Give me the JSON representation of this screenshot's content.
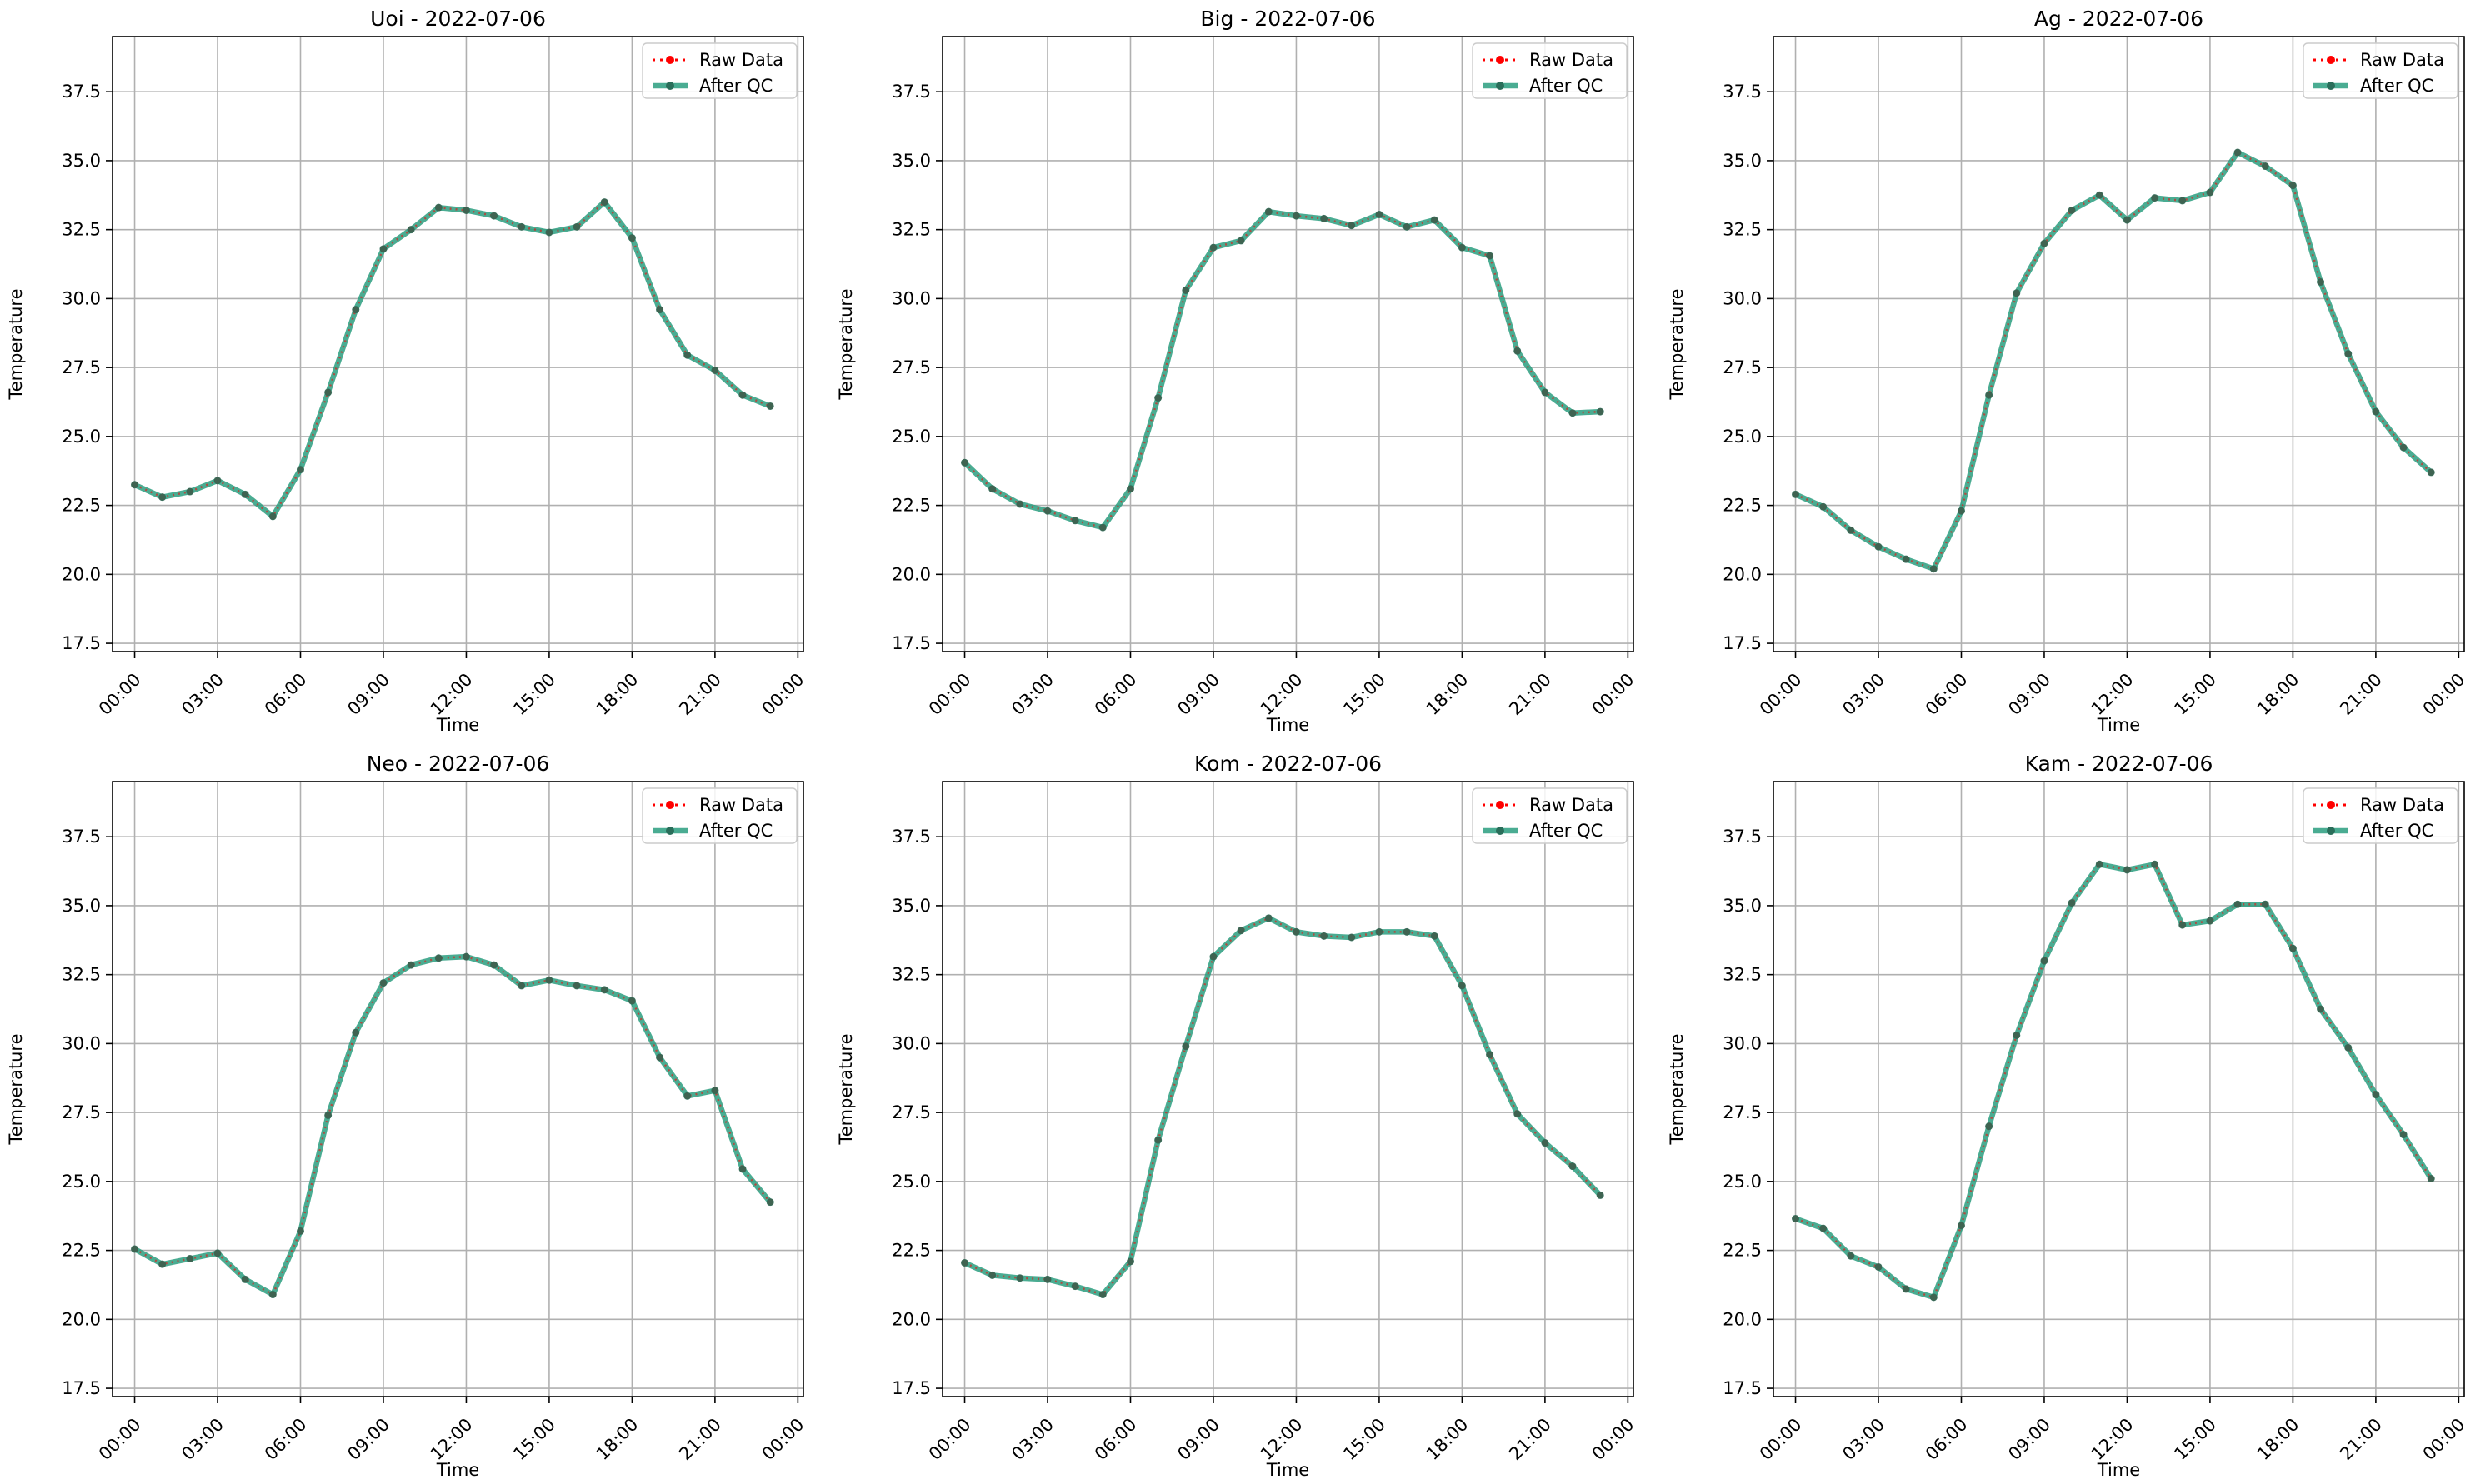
{
  "colors": {
    "raw": "#ff0000",
    "qc": "#2a9d7f",
    "qc_dot": "#2a6e5a",
    "grid": "#b0b0b0",
    "axis": "#000000"
  },
  "chart_data": [
    {
      "type": "line",
      "title": "Uoi - 2022-07-06",
      "xlabel": "Time",
      "ylabel": "Temperature",
      "x": [
        "00:00",
        "01:00",
        "02:00",
        "03:00",
        "04:00",
        "05:00",
        "06:00",
        "07:00",
        "08:00",
        "09:00",
        "10:00",
        "11:00",
        "12:00",
        "13:00",
        "14:00",
        "15:00",
        "16:00",
        "17:00",
        "18:00",
        "19:00",
        "20:00",
        "21:00",
        "22:00",
        "23:00"
      ],
      "xticks": [
        "00:00",
        "03:00",
        "06:00",
        "09:00",
        "12:00",
        "15:00",
        "18:00",
        "21:00",
        "00:00"
      ],
      "ylim": [
        17.2,
        39.5
      ],
      "yticks": [
        "17.5",
        "20.0",
        "22.5",
        "25.0",
        "27.5",
        "30.0",
        "32.5",
        "35.0",
        "37.5"
      ],
      "grid": true,
      "legend_position": "top-right",
      "series": [
        {
          "name": "Raw Data",
          "values": [
            23.25,
            22.8,
            23.0,
            23.4,
            22.9,
            22.1,
            23.8,
            26.6,
            29.6,
            31.8,
            32.5,
            33.3,
            33.2,
            33.0,
            32.6,
            32.4,
            32.6,
            33.5,
            32.2,
            29.6,
            27.95,
            27.4,
            26.5,
            26.1
          ]
        },
        {
          "name": "After QC",
          "values": [
            23.25,
            22.8,
            23.0,
            23.4,
            22.9,
            22.1,
            23.8,
            26.6,
            29.6,
            31.8,
            32.5,
            33.3,
            33.2,
            33.0,
            32.6,
            32.4,
            32.6,
            33.5,
            32.2,
            29.6,
            27.95,
            27.4,
            26.5,
            26.1
          ]
        }
      ]
    },
    {
      "type": "line",
      "title": "Big - 2022-07-06",
      "xlabel": "Time",
      "ylabel": "Temperature",
      "x": [
        "00:00",
        "01:00",
        "02:00",
        "03:00",
        "04:00",
        "05:00",
        "06:00",
        "07:00",
        "08:00",
        "09:00",
        "10:00",
        "11:00",
        "12:00",
        "13:00",
        "14:00",
        "15:00",
        "16:00",
        "17:00",
        "18:00",
        "19:00",
        "20:00",
        "21:00",
        "22:00",
        "23:00"
      ],
      "xticks": [
        "00:00",
        "03:00",
        "06:00",
        "09:00",
        "12:00",
        "15:00",
        "18:00",
        "21:00",
        "00:00"
      ],
      "ylim": [
        17.2,
        39.5
      ],
      "yticks": [
        "17.5",
        "20.0",
        "22.5",
        "25.0",
        "27.5",
        "30.0",
        "32.5",
        "35.0",
        "37.5"
      ],
      "grid": true,
      "legend_position": "top-right",
      "series": [
        {
          "name": "Raw Data",
          "values": [
            24.05,
            23.1,
            22.55,
            22.3,
            21.95,
            21.7,
            23.1,
            26.4,
            30.3,
            31.85,
            32.1,
            33.15,
            33.0,
            32.9,
            32.65,
            33.05,
            32.6,
            32.85,
            31.85,
            31.55,
            28.1,
            26.6,
            25.85,
            25.9
          ]
        },
        {
          "name": "After QC",
          "values": [
            24.05,
            23.1,
            22.55,
            22.3,
            21.95,
            21.7,
            23.1,
            26.4,
            30.3,
            31.85,
            32.1,
            33.15,
            33.0,
            32.9,
            32.65,
            33.05,
            32.6,
            32.85,
            31.85,
            31.55,
            28.1,
            26.6,
            25.85,
            25.9
          ]
        }
      ]
    },
    {
      "type": "line",
      "title": "Ag - 2022-07-06",
      "xlabel": "Time",
      "ylabel": "Temperature",
      "x": [
        "00:00",
        "01:00",
        "02:00",
        "03:00",
        "04:00",
        "05:00",
        "06:00",
        "07:00",
        "08:00",
        "09:00",
        "10:00",
        "11:00",
        "12:00",
        "13:00",
        "14:00",
        "15:00",
        "16:00",
        "17:00",
        "18:00",
        "19:00",
        "20:00",
        "21:00",
        "22:00",
        "23:00"
      ],
      "xticks": [
        "00:00",
        "03:00",
        "06:00",
        "09:00",
        "12:00",
        "15:00",
        "18:00",
        "21:00",
        "00:00"
      ],
      "ylim": [
        17.2,
        39.5
      ],
      "yticks": [
        "17.5",
        "20.0",
        "22.5",
        "25.0",
        "27.5",
        "30.0",
        "32.5",
        "35.0",
        "37.5"
      ],
      "grid": true,
      "legend_position": "top-right",
      "series": [
        {
          "name": "Raw Data",
          "values": [
            22.9,
            22.45,
            21.6,
            21.0,
            20.55,
            20.2,
            22.3,
            26.5,
            30.2,
            32.0,
            33.2,
            33.75,
            32.85,
            33.65,
            33.55,
            33.85,
            35.3,
            34.8,
            34.1,
            30.6,
            28.0,
            25.9,
            24.6,
            23.7
          ]
        },
        {
          "name": "After QC",
          "values": [
            22.9,
            22.45,
            21.6,
            21.0,
            20.55,
            20.2,
            22.3,
            26.5,
            30.2,
            32.0,
            33.2,
            33.75,
            32.85,
            33.65,
            33.55,
            33.85,
            35.3,
            34.8,
            34.1,
            30.6,
            28.0,
            25.9,
            24.6,
            23.7
          ]
        }
      ]
    },
    {
      "type": "line",
      "title": "Neo - 2022-07-06",
      "xlabel": "Time",
      "ylabel": "Temperature",
      "x": [
        "00:00",
        "01:00",
        "02:00",
        "03:00",
        "04:00",
        "05:00",
        "06:00",
        "07:00",
        "08:00",
        "09:00",
        "10:00",
        "11:00",
        "12:00",
        "13:00",
        "14:00",
        "15:00",
        "16:00",
        "17:00",
        "18:00",
        "19:00",
        "20:00",
        "21:00",
        "22:00",
        "23:00"
      ],
      "xticks": [
        "00:00",
        "03:00",
        "06:00",
        "09:00",
        "12:00",
        "15:00",
        "18:00",
        "21:00",
        "00:00"
      ],
      "ylim": [
        17.2,
        39.5
      ],
      "yticks": [
        "17.5",
        "20.0",
        "22.5",
        "25.0",
        "27.5",
        "30.0",
        "32.5",
        "35.0",
        "37.5"
      ],
      "grid": true,
      "legend_position": "top-right",
      "series": [
        {
          "name": "Raw Data",
          "values": [
            22.55,
            22.0,
            22.2,
            22.4,
            21.45,
            20.9,
            23.2,
            27.4,
            30.4,
            32.2,
            32.85,
            33.1,
            33.15,
            32.85,
            32.1,
            32.3,
            32.1,
            31.95,
            31.55,
            29.5,
            28.1,
            28.3,
            25.45,
            24.25
          ]
        },
        {
          "name": "After QC",
          "values": [
            22.55,
            22.0,
            22.2,
            22.4,
            21.45,
            20.9,
            23.2,
            27.4,
            30.4,
            32.2,
            32.85,
            33.1,
            33.15,
            32.85,
            32.1,
            32.3,
            32.1,
            31.95,
            31.55,
            29.5,
            28.1,
            28.3,
            25.45,
            24.25
          ]
        }
      ]
    },
    {
      "type": "line",
      "title": "Kom - 2022-07-06",
      "xlabel": "Time",
      "ylabel": "Temperature",
      "x": [
        "00:00",
        "01:00",
        "02:00",
        "03:00",
        "04:00",
        "05:00",
        "06:00",
        "07:00",
        "08:00",
        "09:00",
        "10:00",
        "11:00",
        "12:00",
        "13:00",
        "14:00",
        "15:00",
        "16:00",
        "17:00",
        "18:00",
        "19:00",
        "20:00",
        "21:00",
        "22:00",
        "23:00"
      ],
      "xticks": [
        "00:00",
        "03:00",
        "06:00",
        "09:00",
        "12:00",
        "15:00",
        "18:00",
        "21:00",
        "00:00"
      ],
      "ylim": [
        17.2,
        39.5
      ],
      "yticks": [
        "17.5",
        "20.0",
        "22.5",
        "25.0",
        "27.5",
        "30.0",
        "32.5",
        "35.0",
        "37.5"
      ],
      "grid": true,
      "legend_position": "top-right",
      "series": [
        {
          "name": "Raw Data",
          "values": [
            22.05,
            21.6,
            21.5,
            21.45,
            21.2,
            20.9,
            22.1,
            26.5,
            29.9,
            33.15,
            34.1,
            34.55,
            34.05,
            33.9,
            33.85,
            34.05,
            34.05,
            33.9,
            32.1,
            29.6,
            27.45,
            26.4,
            25.55,
            24.5
          ]
        },
        {
          "name": "After QC",
          "values": [
            22.05,
            21.6,
            21.5,
            21.45,
            21.2,
            20.9,
            22.1,
            26.5,
            29.9,
            33.15,
            34.1,
            34.55,
            34.05,
            33.9,
            33.85,
            34.05,
            34.05,
            33.9,
            32.1,
            29.6,
            27.45,
            26.4,
            25.55,
            24.5
          ]
        }
      ]
    },
    {
      "type": "line",
      "title": "Kam - 2022-07-06",
      "xlabel": "Time",
      "ylabel": "Temperature",
      "x": [
        "00:00",
        "01:00",
        "02:00",
        "03:00",
        "04:00",
        "05:00",
        "06:00",
        "07:00",
        "08:00",
        "09:00",
        "10:00",
        "11:00",
        "12:00",
        "13:00",
        "14:00",
        "15:00",
        "16:00",
        "17:00",
        "18:00",
        "19:00",
        "20:00",
        "21:00",
        "22:00",
        "23:00"
      ],
      "xticks": [
        "00:00",
        "03:00",
        "06:00",
        "09:00",
        "12:00",
        "15:00",
        "18:00",
        "21:00",
        "00:00"
      ],
      "ylim": [
        17.2,
        39.5
      ],
      "yticks": [
        "17.5",
        "20.0",
        "22.5",
        "25.0",
        "27.5",
        "30.0",
        "32.5",
        "35.0",
        "37.5"
      ],
      "grid": true,
      "legend_position": "top-right",
      "series": [
        {
          "name": "Raw Data",
          "values": [
            23.65,
            23.3,
            22.3,
            21.9,
            21.1,
            20.8,
            23.4,
            27.0,
            30.3,
            33.0,
            35.1,
            36.5,
            36.3,
            36.5,
            34.3,
            34.45,
            35.05,
            35.05,
            33.45,
            31.25,
            29.85,
            28.15,
            26.7,
            25.1
          ]
        },
        {
          "name": "After QC",
          "values": [
            23.65,
            23.3,
            22.3,
            21.9,
            21.1,
            20.8,
            23.4,
            27.0,
            30.3,
            33.0,
            35.1,
            36.5,
            36.3,
            36.5,
            34.3,
            34.45,
            35.05,
            35.05,
            33.45,
            31.25,
            29.85,
            28.15,
            26.7,
            25.1
          ]
        }
      ]
    }
  ]
}
